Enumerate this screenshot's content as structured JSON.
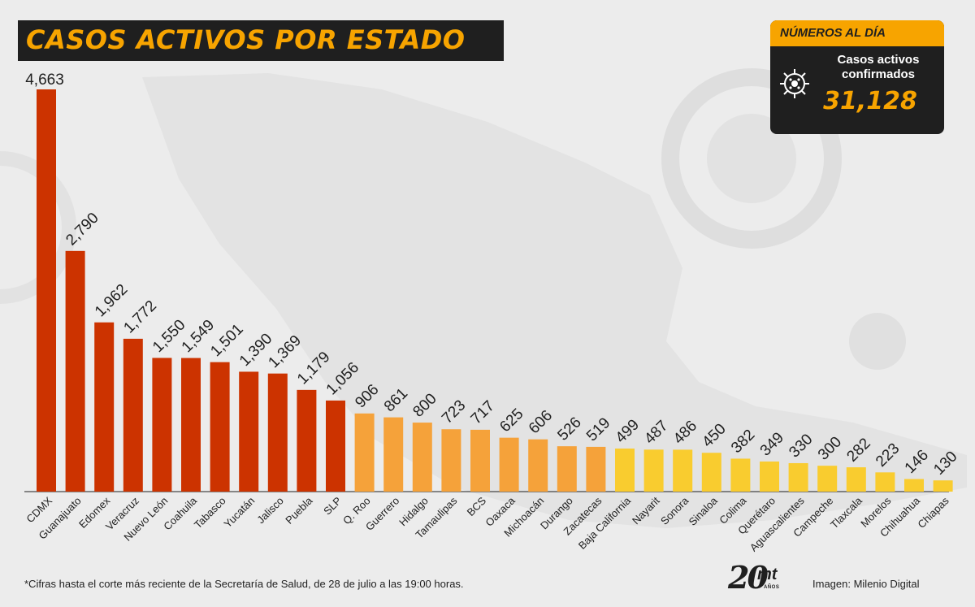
{
  "header": {
    "title": "CASOS ACTIVOS POR ESTADO"
  },
  "badge": {
    "title": "NÚMEROS AL DÍA",
    "label": "Casos activos confirmados",
    "value": "31,128",
    "icon": "virus-icon"
  },
  "footer": {
    "note": "*Cifras hasta el corte más reciente de la Secretaría de Salud, de 28 de julio a las 19:00 horas.",
    "credit": "Imagen: Milenio Digital",
    "logo_number": "20",
    "logo_mark": "mt",
    "logo_sub": "AÑOS"
  },
  "colors": {
    "red": "#cc3300",
    "orange": "#f5a23a",
    "yellow": "#f9cc2f",
    "dark": "#1f1f1f",
    "accent": "#f7a400"
  },
  "chart_data": {
    "type": "bar",
    "title": "CASOS ACTIVOS POR ESTADO",
    "xlabel": "",
    "ylabel": "",
    "ylim": [
      0,
      4663
    ],
    "grid": false,
    "categories": [
      "CDMX",
      "Guanajuato",
      "Edomex",
      "Veracruz",
      "Nuevo León",
      "Coahuila",
      "Tabasco",
      "Yucatán",
      "Jalisco",
      "Puebla",
      "SLP",
      "Q. Roo",
      "Guerrero",
      "Hidalgo",
      "Tamaulipas",
      "BCS",
      "Oaxaca",
      "Michoacán",
      "Durango",
      "Zacatecas",
      "Baja California",
      "Nayarit",
      "Sonora",
      "Sinaloa",
      "Colima",
      "Querétaro",
      "Aguascalientes",
      "Campeche",
      "Tlaxcala",
      "Morelos",
      "Chihuahua",
      "Chiapas"
    ],
    "values": [
      4663,
      2790,
      1962,
      1772,
      1550,
      1549,
      1501,
      1390,
      1369,
      1179,
      1056,
      906,
      861,
      800,
      723,
      717,
      625,
      606,
      526,
      519,
      499,
      487,
      486,
      450,
      382,
      349,
      330,
      300,
      282,
      223,
      146,
      130
    ],
    "value_labels": [
      "4,663",
      "2,790",
      "1,962",
      "1,772",
      "1,550",
      "1,549",
      "1,501",
      "1,390",
      "1,369",
      "1,179",
      "1,056",
      "906",
      "861",
      "800",
      "723",
      "717",
      "625",
      "606",
      "526",
      "519",
      "499",
      "487",
      "486",
      "450",
      "382",
      "349",
      "330",
      "300",
      "282",
      "223",
      "146",
      "130"
    ],
    "bar_colors": [
      "red",
      "red",
      "red",
      "red",
      "red",
      "red",
      "red",
      "red",
      "red",
      "red",
      "red",
      "orange",
      "orange",
      "orange",
      "orange",
      "orange",
      "orange",
      "orange",
      "orange",
      "orange",
      "yellow",
      "yellow",
      "yellow",
      "yellow",
      "yellow",
      "yellow",
      "yellow",
      "yellow",
      "yellow",
      "yellow",
      "yellow",
      "yellow"
    ]
  }
}
